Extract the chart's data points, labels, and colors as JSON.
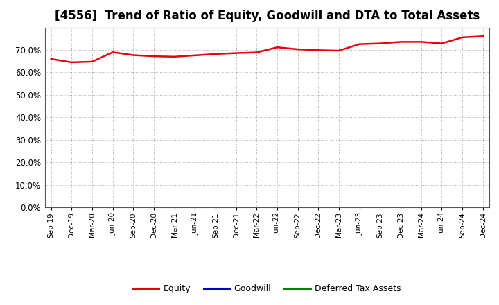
{
  "title": "[4556]  Trend of Ratio of Equity, Goodwill and DTA to Total Assets",
  "x_labels": [
    "Sep-19",
    "Dec-19",
    "Mar-20",
    "Jun-20",
    "Sep-20",
    "Dec-20",
    "Mar-21",
    "Jun-21",
    "Sep-21",
    "Dec-21",
    "Mar-22",
    "Jun-22",
    "Sep-22",
    "Dec-22",
    "Mar-23",
    "Jun-23",
    "Sep-23",
    "Dec-23",
    "Mar-24",
    "Jun-24",
    "Sep-24",
    "Dec-24"
  ],
  "equity": [
    0.66,
    0.645,
    0.648,
    0.69,
    0.677,
    0.672,
    0.67,
    0.676,
    0.682,
    0.686,
    0.689,
    0.712,
    0.703,
    0.699,
    0.697,
    0.726,
    0.729,
    0.736,
    0.736,
    0.729,
    0.756,
    0.761
  ],
  "goodwill": [
    0.0,
    0.0,
    0.0,
    0.0,
    0.0,
    0.0,
    0.0,
    0.0,
    0.0,
    0.0,
    0.0,
    0.0,
    0.0,
    0.0,
    0.0,
    0.0,
    0.0,
    0.0,
    0.0,
    0.0,
    0.0,
    0.0
  ],
  "dta": [
    0.0,
    0.0,
    0.0,
    0.0,
    0.0,
    0.0,
    0.0,
    0.0,
    0.0,
    0.0,
    0.0,
    0.0,
    0.0,
    0.0,
    0.0,
    0.0,
    0.0,
    0.0,
    0.0,
    0.0,
    0.0,
    0.0
  ],
  "equity_color": "#e8000a",
  "goodwill_color": "#0000cd",
  "dta_color": "#008000",
  "bg_color": "#ffffff",
  "plot_bg_color": "#ffffff",
  "grid_color": "#888888",
  "ylim": [
    0.0,
    0.8
  ],
  "yticks": [
    0.0,
    0.1,
    0.2,
    0.3,
    0.4,
    0.5,
    0.6,
    0.7
  ],
  "title_fontsize": 12,
  "legend_entries": [
    "Equity",
    "Goodwill",
    "Deferred Tax Assets"
  ],
  "line_width": 1.8
}
